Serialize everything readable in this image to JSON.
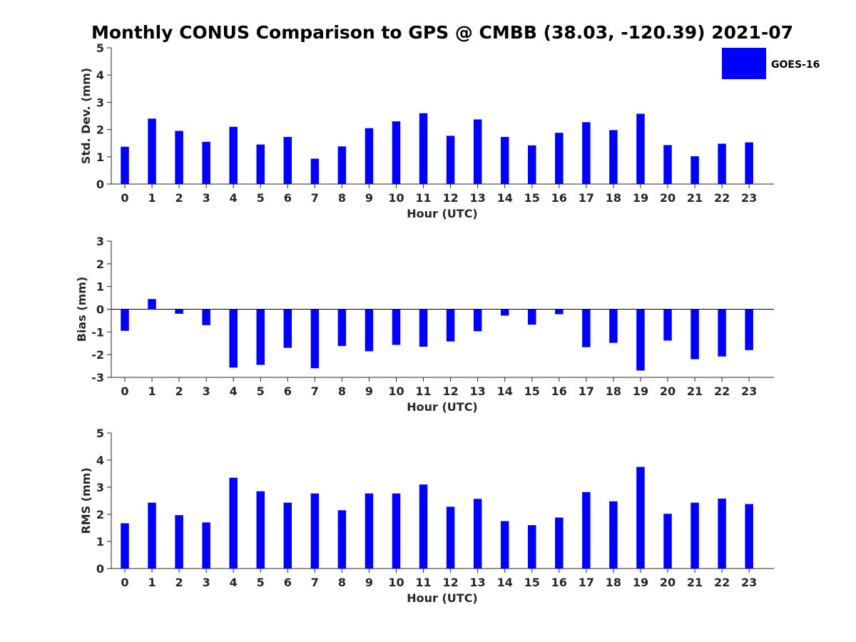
{
  "figure": {
    "title": "Monthly CONUS Comparison to GPS @ CMBB (38.03, -120.39) 2021-07"
  },
  "legend": {
    "label": "GOES-16",
    "color": "#0000ff",
    "placement": "top-right"
  },
  "chart_data": [
    {
      "type": "bar",
      "panel": "std-dev",
      "title": "",
      "xlabel": "Hour (UTC)",
      "ylabel": "Std. Dev. (mm)",
      "ylim": [
        0,
        5
      ],
      "yticks": [
        0,
        1,
        2,
        3,
        4,
        5
      ],
      "categories": [
        "0",
        "1",
        "2",
        "3",
        "4",
        "5",
        "6",
        "7",
        "8",
        "9",
        "10",
        "11",
        "12",
        "13",
        "14",
        "15",
        "16",
        "17",
        "18",
        "19",
        "20",
        "21",
        "22",
        "23"
      ],
      "series": [
        {
          "name": "GOES-16",
          "color": "#0000ff",
          "values": [
            1.37,
            2.4,
            1.95,
            1.55,
            2.1,
            1.45,
            1.73,
            0.93,
            1.38,
            2.05,
            2.3,
            2.6,
            1.77,
            2.37,
            1.73,
            1.42,
            1.88,
            2.27,
            1.98,
            2.58,
            1.43,
            1.02,
            1.48,
            1.53
          ]
        }
      ]
    },
    {
      "type": "bar",
      "panel": "bias",
      "title": "",
      "xlabel": "Hour (UTC)",
      "ylabel": "Bias (mm)",
      "ylim": [
        -3,
        3
      ],
      "yticks": [
        -3,
        -2,
        -1,
        0,
        1,
        2,
        3
      ],
      "categories": [
        "0",
        "1",
        "2",
        "3",
        "4",
        "5",
        "6",
        "7",
        "8",
        "9",
        "10",
        "11",
        "12",
        "13",
        "14",
        "15",
        "16",
        "17",
        "18",
        "19",
        "20",
        "21",
        "22",
        "23"
      ],
      "series": [
        {
          "name": "GOES-16",
          "color": "#0000ff",
          "values": [
            -0.95,
            0.45,
            -0.2,
            -0.7,
            -2.57,
            -2.45,
            -1.7,
            -2.6,
            -1.62,
            -1.85,
            -1.57,
            -1.65,
            -1.42,
            -0.97,
            -0.28,
            -0.68,
            -0.22,
            -1.67,
            -1.48,
            -2.7,
            -1.38,
            -2.2,
            -2.08,
            -1.8
          ]
        }
      ]
    },
    {
      "type": "bar",
      "panel": "rms",
      "title": "",
      "xlabel": "Hour (UTC)",
      "ylabel": "RMS (mm)",
      "ylim": [
        0,
        5
      ],
      "yticks": [
        0,
        1,
        2,
        3,
        4,
        5
      ],
      "categories": [
        "0",
        "1",
        "2",
        "3",
        "4",
        "5",
        "6",
        "7",
        "8",
        "9",
        "10",
        "11",
        "12",
        "13",
        "14",
        "15",
        "16",
        "17",
        "18",
        "19",
        "20",
        "21",
        "22",
        "23"
      ],
      "series": [
        {
          "name": "GOES-16",
          "color": "#0000ff",
          "values": [
            1.67,
            2.43,
            1.97,
            1.7,
            3.35,
            2.85,
            2.43,
            2.77,
            2.15,
            2.77,
            2.77,
            3.1,
            2.28,
            2.57,
            1.75,
            1.6,
            1.88,
            2.82,
            2.48,
            3.75,
            2.02,
            2.43,
            2.58,
            2.38
          ]
        }
      ]
    }
  ]
}
